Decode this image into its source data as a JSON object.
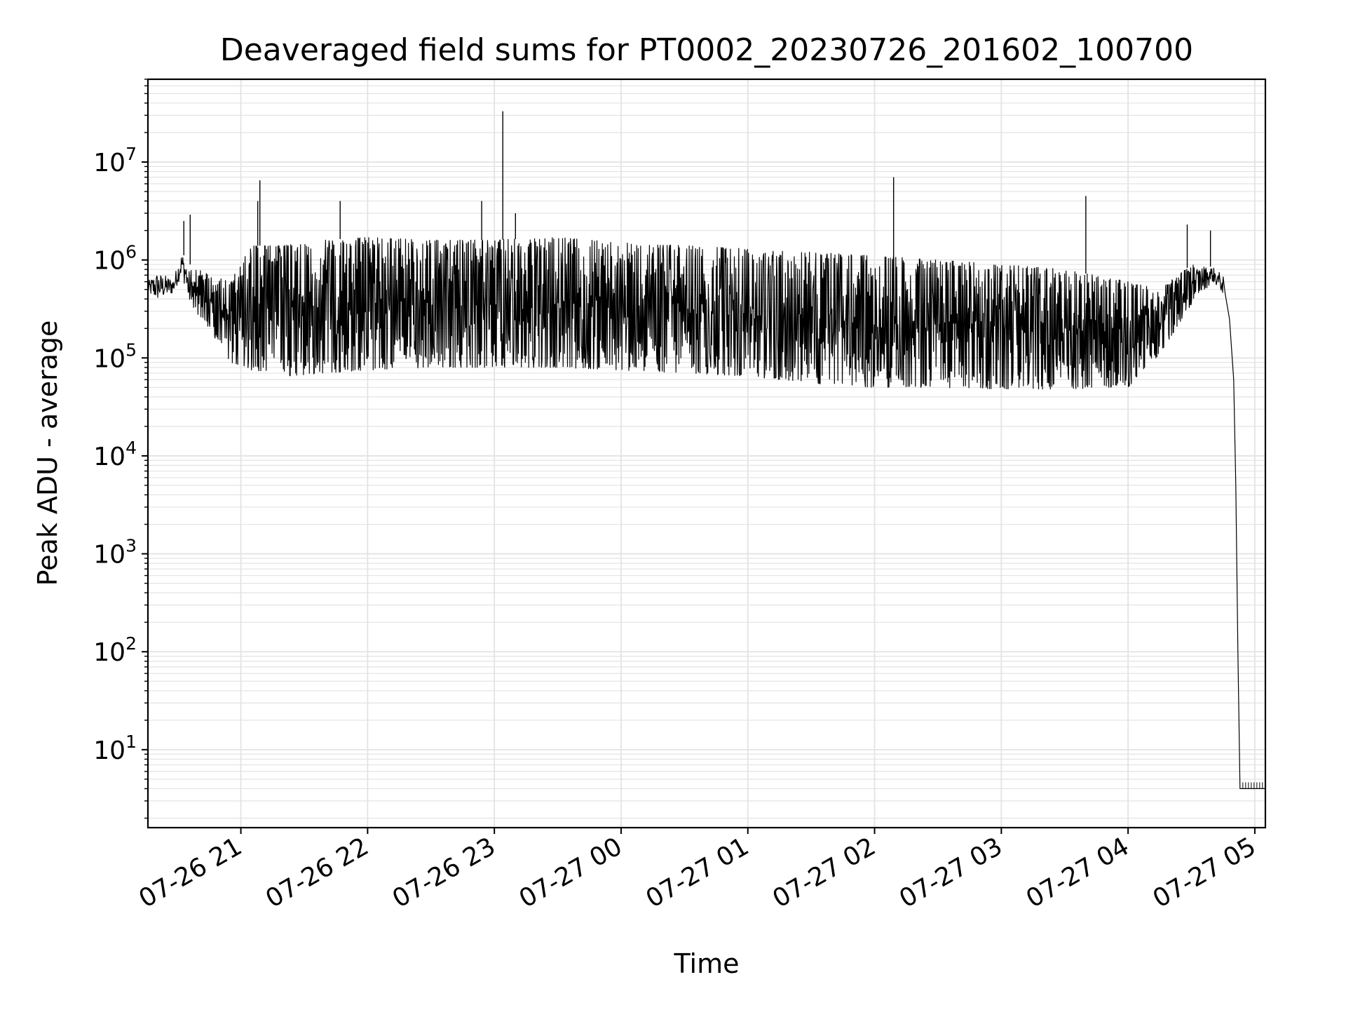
{
  "chart_data": {
    "type": "line",
    "title": "Deaveraged field sums for PT0002_20230726_201602_100700",
    "xlabel": "Time",
    "ylabel": "Peak ADU - average",
    "y_scale": "log",
    "ylim": [
      1.6,
      70000000
    ],
    "xlim": [
      "2023-07-26 20:16",
      "2023-07-27 05:05"
    ],
    "grid": "on (major and minor)",
    "line_color": "#000000",
    "grid_color": "#e3e3e3",
    "x_ticks": [
      {
        "t": "2023-07-26 21:00",
        "label": "07-26 21"
      },
      {
        "t": "2023-07-26 22:00",
        "label": "07-26 22"
      },
      {
        "t": "2023-07-26 23:00",
        "label": "07-26 23"
      },
      {
        "t": "2023-07-27 00:00",
        "label": "07-27 00"
      },
      {
        "t": "2023-07-27 01:00",
        "label": "07-27 01"
      },
      {
        "t": "2023-07-27 02:00",
        "label": "07-27 02"
      },
      {
        "t": "2023-07-27 03:00",
        "label": "07-27 03"
      },
      {
        "t": "2023-07-27 04:00",
        "label": "07-27 04"
      },
      {
        "t": "2023-07-27 05:00",
        "label": "07-27 05"
      }
    ],
    "y_ticks": [
      {
        "value": 10,
        "base": "10",
        "exp": "1"
      },
      {
        "value": 100,
        "base": "10",
        "exp": "2"
      },
      {
        "value": 1000,
        "base": "10",
        "exp": "3"
      },
      {
        "value": 10000,
        "base": "10",
        "exp": "4"
      },
      {
        "value": 100000,
        "base": "10",
        "exp": "5"
      },
      {
        "value": 1000000,
        "base": "10",
        "exp": "6"
      },
      {
        "value": 10000000,
        "base": "10",
        "exp": "7"
      }
    ],
    "series": [
      {
        "envelope": [
          {
            "t": "2023-07-26 20:16",
            "low": 450000,
            "high": 600000
          },
          {
            "t": "2023-07-26 20:20",
            "low": 380000,
            "high": 750000
          },
          {
            "t": "2023-07-26 20:28",
            "low": 450000,
            "high": 650000
          },
          {
            "t": "2023-07-26 20:32",
            "low": 700000,
            "high": 1200000
          },
          {
            "t": "2023-07-26 20:36",
            "low": 350000,
            "high": 900000
          },
          {
            "t": "2023-07-26 20:45",
            "low": 200000,
            "high": 700000
          },
          {
            "t": "2023-07-26 20:55",
            "low": 90000,
            "high": 600000
          },
          {
            "t": "2023-07-26 21:05",
            "low": 75000,
            "high": 1400000
          },
          {
            "t": "2023-07-26 21:20",
            "low": 65000,
            "high": 1400000
          },
          {
            "t": "2023-07-26 21:40",
            "low": 70000,
            "high": 1600000
          },
          {
            "t": "2023-07-26 22:00",
            "low": 75000,
            "high": 1700000
          },
          {
            "t": "2023-07-26 22:30",
            "low": 80000,
            "high": 1600000
          },
          {
            "t": "2023-07-26 23:00",
            "low": 80000,
            "high": 1600000
          },
          {
            "t": "2023-07-26 23:30",
            "low": 80000,
            "high": 1700000
          },
          {
            "t": "2023-07-27 00:00",
            "low": 75000,
            "high": 1500000
          },
          {
            "t": "2023-07-27 00:30",
            "low": 70000,
            "high": 1400000
          },
          {
            "t": "2023-07-27 01:00",
            "low": 65000,
            "high": 1300000
          },
          {
            "t": "2023-07-27 01:30",
            "low": 55000,
            "high": 1200000
          },
          {
            "t": "2023-07-27 02:00",
            "low": 50000,
            "high": 1100000
          },
          {
            "t": "2023-07-27 02:30",
            "low": 50000,
            "high": 1000000
          },
          {
            "t": "2023-07-27 03:00",
            "low": 48000,
            "high": 900000
          },
          {
            "t": "2023-07-27 03:30",
            "low": 48000,
            "high": 800000
          },
          {
            "t": "2023-07-27 04:00",
            "low": 50000,
            "high": 600000
          },
          {
            "t": "2023-07-27 04:15",
            "low": 110000,
            "high": 500000
          },
          {
            "t": "2023-07-27 04:30",
            "low": 350000,
            "high": 900000
          },
          {
            "t": "2023-07-27 04:40",
            "low": 600000,
            "high": 850000
          },
          {
            "t": "2023-07-27 04:45",
            "low": 450000,
            "high": 700000
          }
        ],
        "spikes": [
          {
            "t": "2023-07-26 20:33",
            "value": 2500000
          },
          {
            "t": "2023-07-26 20:36",
            "value": 2900000
          },
          {
            "t": "2023-07-26 21:08",
            "value": 4000000
          },
          {
            "t": "2023-07-26 21:09",
            "value": 6500000
          },
          {
            "t": "2023-07-26 21:47",
            "value": 4000000
          },
          {
            "t": "2023-07-26 22:54",
            "value": 4000000
          },
          {
            "t": "2023-07-26 23:04",
            "value": 33000000
          },
          {
            "t": "2023-07-26 23:10",
            "value": 3000000
          },
          {
            "t": "2023-07-27 02:09",
            "value": 7000000
          },
          {
            "t": "2023-07-27 03:40",
            "value": 4500000
          },
          {
            "t": "2023-07-27 04:28",
            "value": 2300000
          },
          {
            "t": "2023-07-27 04:39",
            "value": 2000000
          }
        ],
        "tail": [
          {
            "t": "2023-07-27 04:46",
            "value": 450000
          },
          {
            "t": "2023-07-27 04:48",
            "value": 250000
          },
          {
            "t": "2023-07-27 04:50",
            "value": 60000
          },
          {
            "t": "2023-07-27 04:51",
            "value": 5000
          },
          {
            "t": "2023-07-27 04:52",
            "value": 100
          },
          {
            "t": "2023-07-27 04:53",
            "value": 4
          },
          {
            "t": "2023-07-27 05:05",
            "value": 4
          }
        ]
      }
    ]
  }
}
